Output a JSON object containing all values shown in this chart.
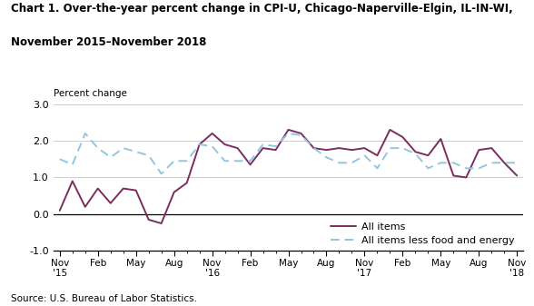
{
  "title_line1": "Chart 1. Over-the-year percent change in CPI-U, Chicago-Naperville-Elgin, IL-IN-WI,",
  "title_line2": "November 2015–November 2018",
  "ylabel": "Percent change",
  "source": "Source: U.S. Bureau of Labor Statistics.",
  "ylim": [
    -1.0,
    3.0
  ],
  "yticks": [
    -1.0,
    0.0,
    1.0,
    2.0,
    3.0
  ],
  "all_items": [
    0.1,
    0.9,
    0.2,
    0.7,
    0.3,
    0.7,
    0.65,
    -0.15,
    -0.25,
    0.6,
    0.85,
    1.9,
    2.2,
    1.9,
    1.8,
    1.35,
    1.8,
    1.75,
    2.3,
    2.2,
    1.8,
    1.75,
    1.8,
    1.75,
    1.8,
    1.6,
    2.3,
    2.1,
    1.7,
    1.6,
    2.05,
    1.05,
    1.0,
    1.75,
    1.8,
    1.4,
    1.05
  ],
  "less_food_energy": [
    1.5,
    1.35,
    2.2,
    1.8,
    1.55,
    1.8,
    1.7,
    1.6,
    1.1,
    1.45,
    1.45,
    1.9,
    1.85,
    1.45,
    1.45,
    1.45,
    1.9,
    1.85,
    2.2,
    2.15,
    1.8,
    1.55,
    1.4,
    1.4,
    1.6,
    1.25,
    1.8,
    1.8,
    1.65,
    1.25,
    1.4,
    1.4,
    1.25,
    1.25,
    1.4,
    1.4,
    1.4
  ],
  "tick_positions": [
    0,
    3,
    6,
    9,
    12,
    15,
    18,
    21,
    24,
    27,
    30,
    33,
    36
  ],
  "tick_labels": [
    "Nov\n'15",
    "Feb",
    "May",
    "Aug",
    "Nov\n'16",
    "Feb",
    "May",
    "Aug",
    "Nov\n'17",
    "Feb",
    "May",
    "Aug",
    "Nov\n'18"
  ],
  "all_items_color": "#7B2D5E",
  "less_food_energy_color": "#92C5E0",
  "background_color": "#ffffff",
  "grid_color": "#cccccc"
}
